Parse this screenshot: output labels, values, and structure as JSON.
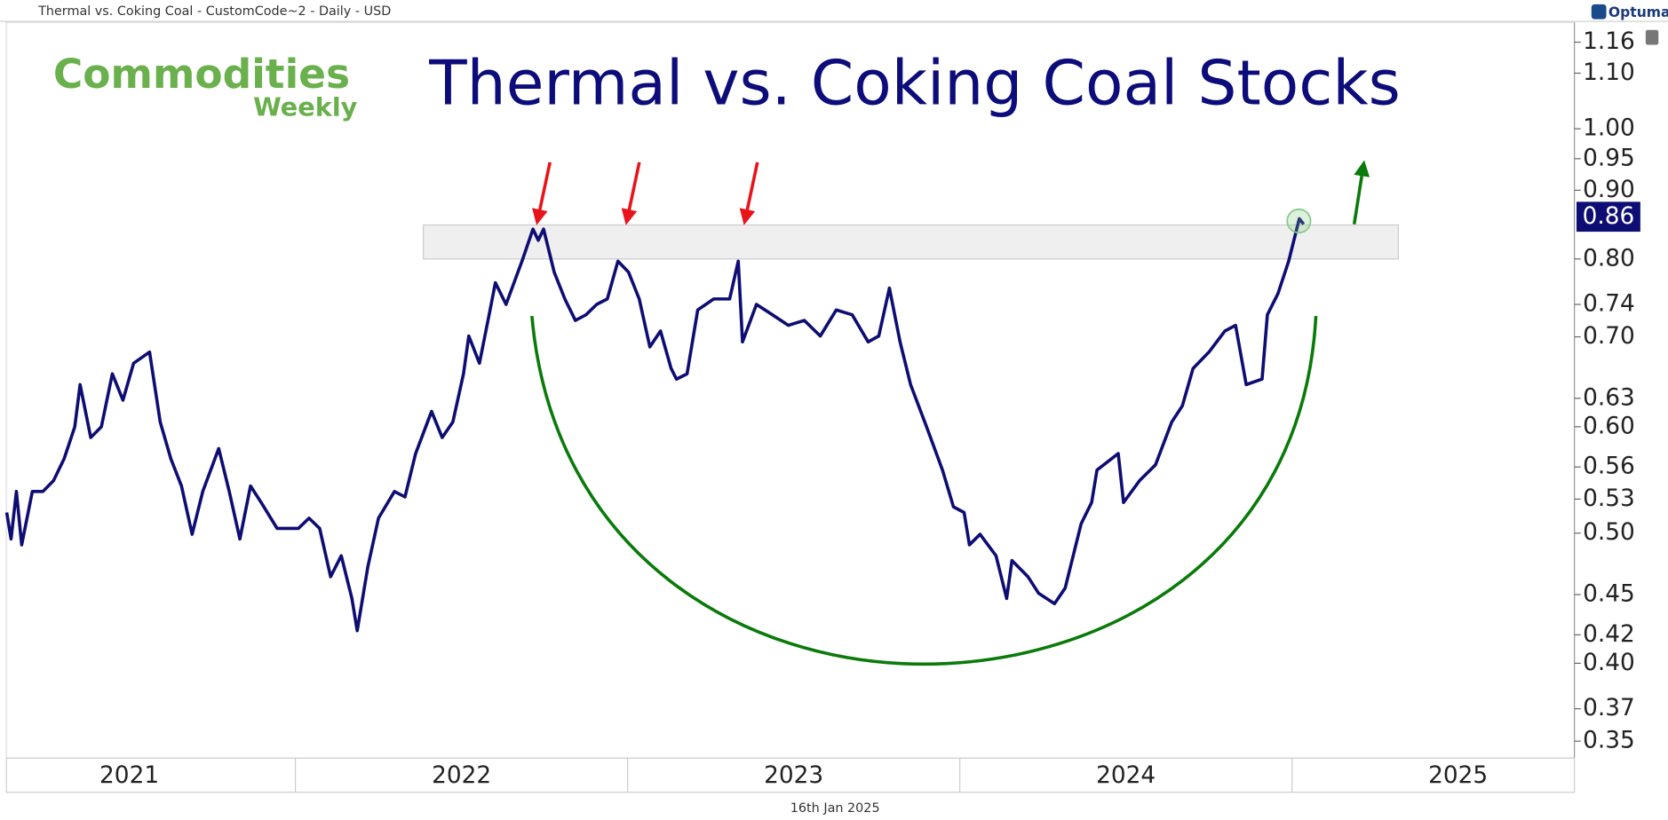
{
  "window_title": "Thermal vs. Coking Coal - CustomCode~2 - Daily - USD",
  "brand": "Optuma",
  "logo": {
    "line1": "Commodities",
    "line2": "Weekly"
  },
  "date_label": "16th Jan 2025",
  "chart_data": {
    "type": "line",
    "title": "Thermal vs. Coking Coal Stocks",
    "color": "#0d0d73",
    "log_scale": true,
    "x": [
      2021.131,
      2021.144,
      2021.16,
      2021.176,
      2021.208,
      2021.24,
      2021.272,
      2021.304,
      2021.336,
      2021.352,
      2021.384,
      2021.416,
      2021.449,
      2021.481,
      2021.513,
      2021.561,
      2021.593,
      2021.625,
      2021.657,
      2021.689,
      2021.721,
      2021.769,
      2021.801,
      2021.833,
      2021.865,
      2021.897,
      2021.945,
      2022.009,
      2022.041,
      2022.073,
      2022.106,
      2022.138,
      2022.17,
      2022.186,
      2022.218,
      2022.25,
      2022.298,
      2022.33,
      2022.362,
      2022.41,
      2022.442,
      2022.474,
      2022.506,
      2022.522,
      2022.554,
      2022.586,
      2022.602,
      2022.634,
      2022.682,
      2022.715,
      2022.731,
      2022.747,
      2022.779,
      2022.811,
      2022.843,
      2022.875,
      2022.907,
      2022.939,
      2022.971,
      2023.003,
      2023.035,
      2023.067,
      2023.099,
      2023.131,
      2023.147,
      2023.179,
      2023.211,
      2023.259,
      2023.307,
      2023.333,
      2023.346,
      2023.388,
      2023.436,
      2023.484,
      2023.532,
      2023.58,
      2023.628,
      2023.676,
      2023.724,
      2023.756,
      2023.788,
      2023.82,
      2023.852,
      2023.9,
      2023.948,
      2023.981,
      2024.013,
      2024.029,
      2024.061,
      2024.109,
      2024.141,
      2024.157,
      2024.205,
      2024.237,
      2024.285,
      2024.317,
      2024.365,
      2024.397,
      2024.413,
      2024.477,
      2024.493,
      2024.541,
      2024.589,
      2024.638,
      2024.67,
      2024.702,
      2024.75,
      2024.798,
      2024.83,
      2024.862,
      2024.91,
      2024.926,
      2024.958,
      2024.99,
      2025.022,
      2025.035
    ],
    "values": [
      0.518,
      0.495,
      0.537,
      0.49,
      0.537,
      0.537,
      0.547,
      0.568,
      0.6,
      0.645,
      0.589,
      0.6,
      0.657,
      0.628,
      0.669,
      0.682,
      0.605,
      0.568,
      0.542,
      0.499,
      0.537,
      0.578,
      0.537,
      0.495,
      0.542,
      0.527,
      0.504,
      0.504,
      0.513,
      0.504,
      0.464,
      0.481,
      0.447,
      0.423,
      0.472,
      0.513,
      0.537,
      0.532,
      0.573,
      0.616,
      0.589,
      0.605,
      0.657,
      0.701,
      0.669,
      0.733,
      0.768,
      0.74,
      0.797,
      0.842,
      0.826,
      0.842,
      0.782,
      0.747,
      0.72,
      0.727,
      0.74,
      0.747,
      0.797,
      0.782,
      0.747,
      0.688,
      0.707,
      0.663,
      0.651,
      0.657,
      0.733,
      0.747,
      0.747,
      0.797,
      0.694,
      0.74,
      0.727,
      0.714,
      0.72,
      0.701,
      0.733,
      0.727,
      0.694,
      0.701,
      0.761,
      0.694,
      0.645,
      0.6,
      0.557,
      0.523,
      0.518,
      0.49,
      0.499,
      0.481,
      0.447,
      0.477,
      0.464,
      0.451,
      0.443,
      0.455,
      0.508,
      0.527,
      0.557,
      0.573,
      0.527,
      0.547,
      0.562,
      0.605,
      0.622,
      0.663,
      0.682,
      0.707,
      0.714,
      0.645,
      0.651,
      0.727,
      0.754,
      0.797,
      0.857,
      0.849
    ],
    "last_value": 0.86,
    "band": {
      "xlim": [
        2022.385,
        2025.32
      ],
      "ylim": [
        0.8,
        0.848
      ]
    },
    "xlim": [
      2021.13,
      2025.85
    ],
    "xticks": [
      2021,
      2022,
      2023,
      2024,
      2025
    ],
    "ylim": [
      0.34,
      1.2
    ],
    "yticks": [
      1.16,
      {
        "value": 1.1,
        "label": "1.10"
      },
      {
        "value": 1.0,
        "label": "1.00"
      },
      0.95,
      {
        "value": 0.9,
        "label": "0.90"
      },
      {
        "value": 0.8,
        "label": "0.80"
      },
      0.74,
      {
        "value": 0.7,
        "label": "0.70"
      },
      0.63,
      {
        "value": 0.6,
        "label": "0.60"
      },
      0.56,
      0.53,
      {
        "value": 0.5,
        "label": "0.50"
      },
      0.45,
      0.42,
      {
        "value": 0.4,
        "label": "0.40"
      },
      0.37,
      0.35
    ]
  }
}
